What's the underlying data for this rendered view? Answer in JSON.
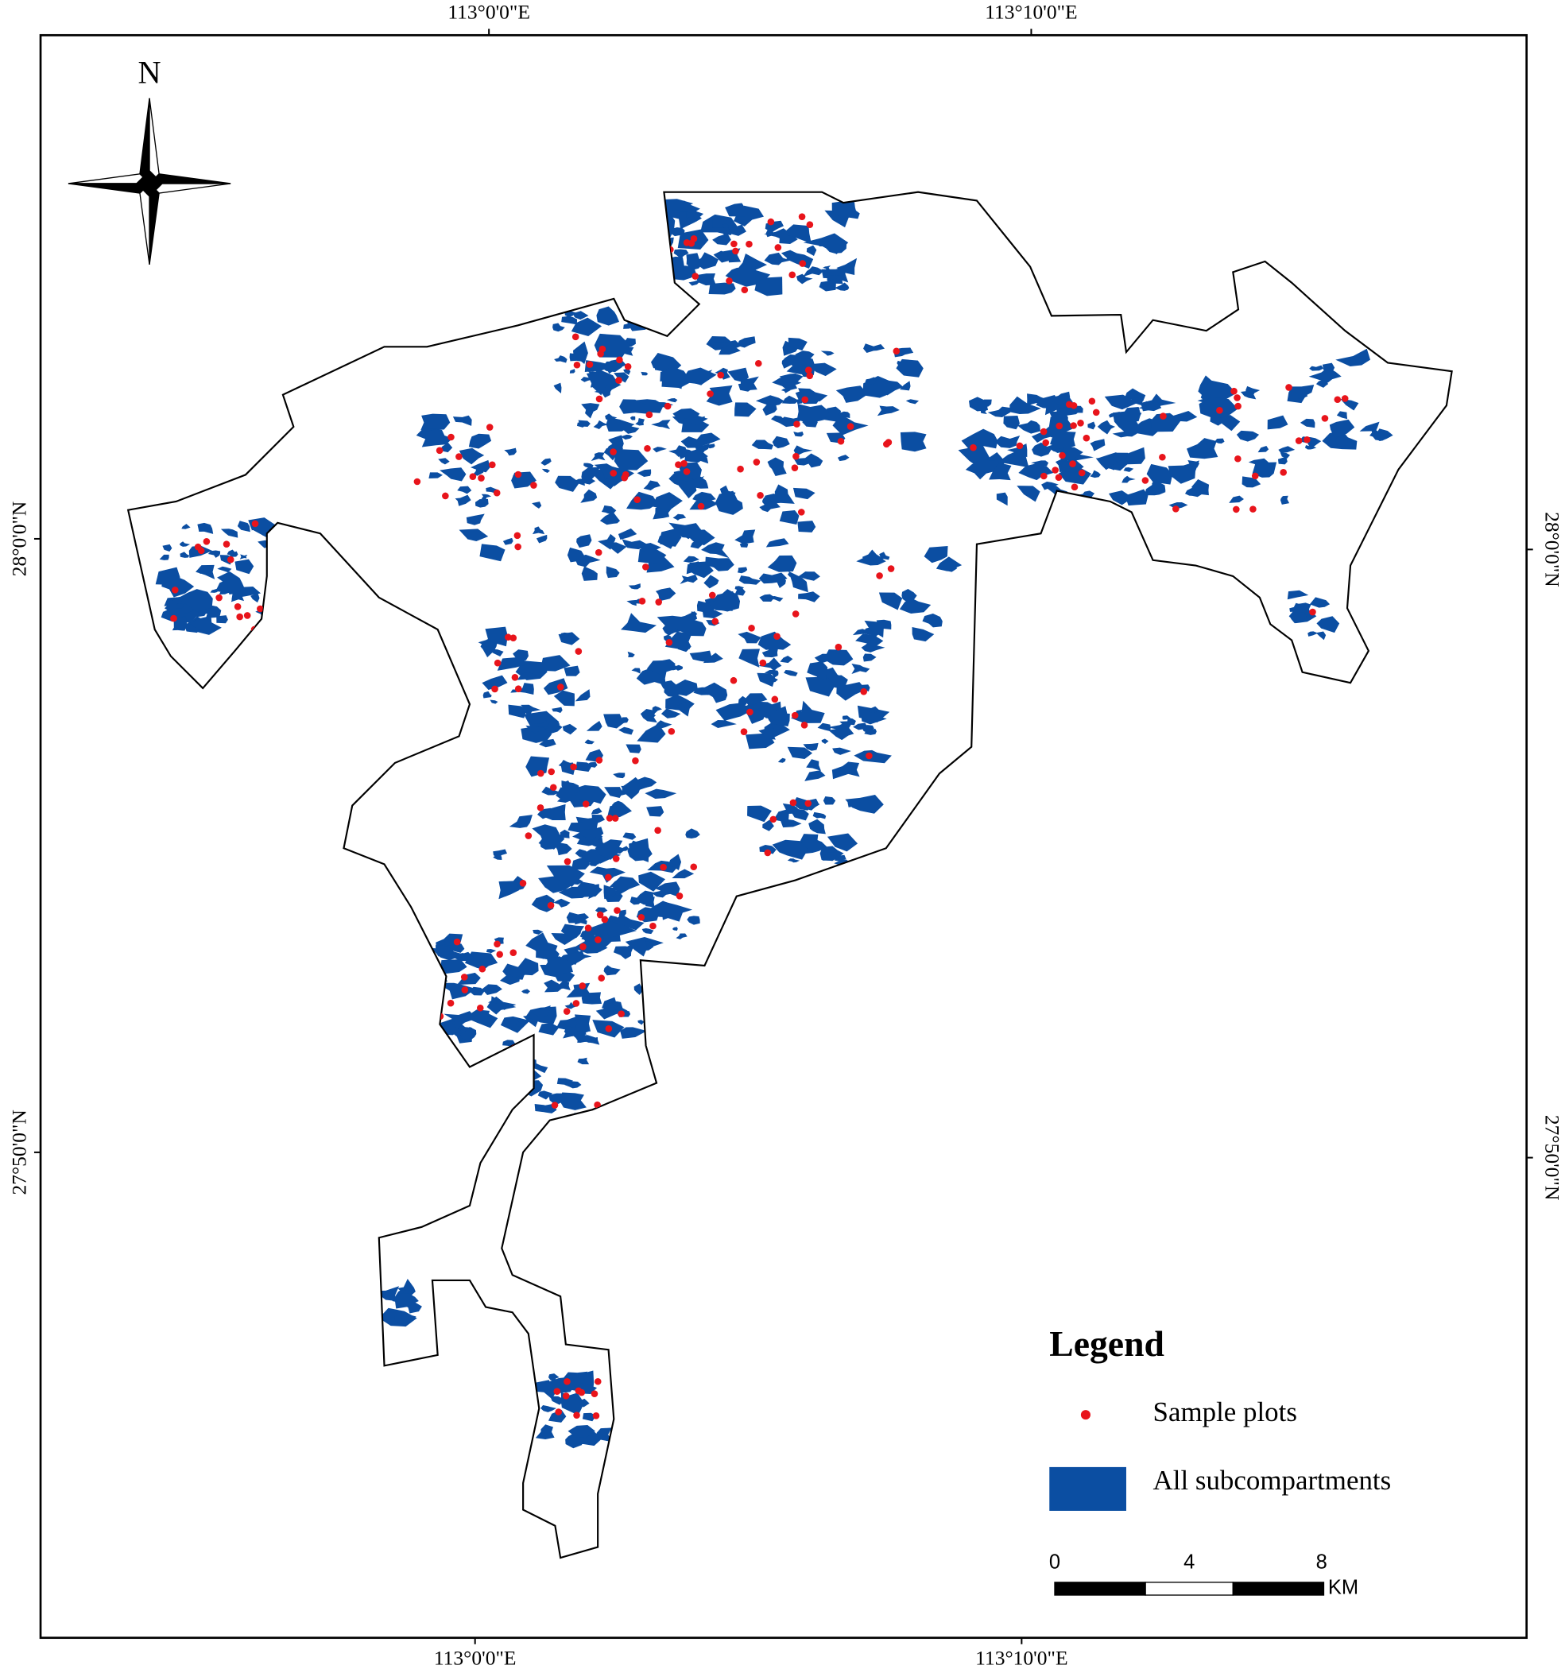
{
  "map": {
    "graticule": {
      "top": [
        "113°0'0\"E",
        "113°10'0\"E"
      ],
      "bottom": [
        "113°0'0\"E",
        "113°10'0\"E"
      ],
      "left": [
        "28°0'0\"N",
        "27°50'0\"N"
      ],
      "right": [
        "28°0'0\"N",
        "27°50'0\"N"
      ]
    },
    "north_label": "N",
    "legend": {
      "title": "Legend",
      "items": [
        "Sample plots",
        "All subcompartments"
      ]
    },
    "scale_bar": {
      "labels": [
        0,
        4,
        8
      ],
      "unit": "KM"
    }
  }
}
